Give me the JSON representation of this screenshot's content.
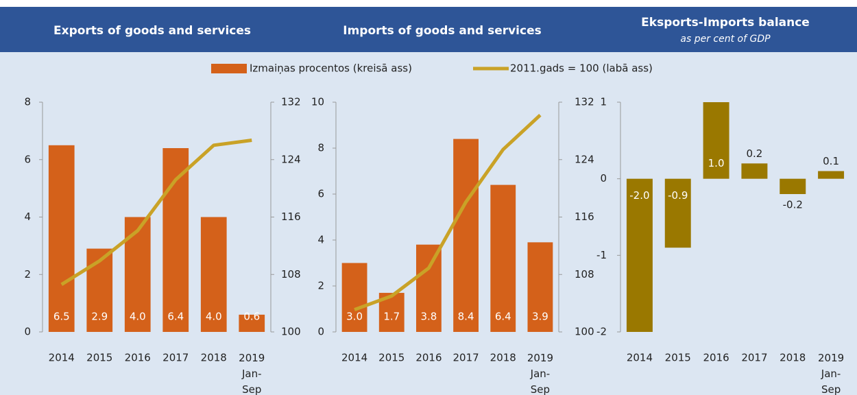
{
  "legend_note": null,
  "chart_data": [
    {
      "type": "combo",
      "title": "Exports of goods and services",
      "categories": [
        "2014",
        "2015",
        "2016",
        "2017",
        "2018",
        "2019 Jan-Sep"
      ],
      "series": [
        {
          "name": "Izmaiņas procentos (kreisā ass)",
          "color": "#d4611a",
          "values": [
            6.5,
            2.9,
            4.0,
            6.4,
            4.0,
            0.6
          ],
          "value_labels": [
            "6.5",
            "2.9",
            "4.0",
            "6.4",
            "4.0",
            "0.6"
          ]
        },
        {
          "name": "2011.gads = 100 (labā ass)",
          "color": "#c9a227",
          "axis": "y2",
          "values": [
            106.6,
            109.9,
            114.1,
            121.2,
            126.0,
            126.7
          ]
        }
      ],
      "ylim": [
        0,
        8
      ],
      "yticks": [
        0,
        2,
        4,
        6,
        8
      ],
      "y2lim": [
        100,
        132
      ],
      "y2ticks": [
        100,
        108,
        116,
        124,
        132
      ]
    },
    {
      "type": "combo",
      "title": "Imports of goods and services",
      "categories": [
        "2014",
        "2015",
        "2016",
        "2017",
        "2018",
        "2019 Jan-Sep"
      ],
      "series": [
        {
          "color": "#d4611a",
          "values": [
            3.0,
            1.7,
            3.8,
            8.4,
            6.4,
            3.9
          ],
          "value_labels": [
            "3.0",
            "1.7",
            "3.8",
            "8.4",
            "6.4",
            "3.9"
          ]
        },
        {
          "color": "#c9a227",
          "axis": "y2",
          "values": [
            103.1,
            105.0,
            108.9,
            118.1,
            125.4,
            130.2
          ]
        }
      ],
      "ylim": [
        0,
        10
      ],
      "yticks": [
        0,
        2,
        4,
        6,
        8,
        10
      ],
      "y2lim": [
        100,
        132
      ],
      "y2ticks": [
        100,
        108,
        116,
        124,
        132
      ]
    },
    {
      "type": "bar",
      "title": "Eksports-Imports balance",
      "subtitle": "as per cent of GDP",
      "categories": [
        "2014",
        "2015",
        "2016",
        "2017",
        "2018",
        "2019 Jan-Sep"
      ],
      "series": [
        {
          "color": "#9a7800",
          "values": [
            -2.0,
            -0.9,
            1.0,
            0.2,
            -0.2,
            0.1
          ],
          "value_labels": [
            "-2.0",
            "-0.9",
            "1.0",
            "0.2",
            "-0.2",
            "0.1"
          ]
        }
      ],
      "ylim": [
        -2,
        1
      ],
      "yticks": [
        -2,
        -1,
        0,
        1
      ]
    }
  ]
}
